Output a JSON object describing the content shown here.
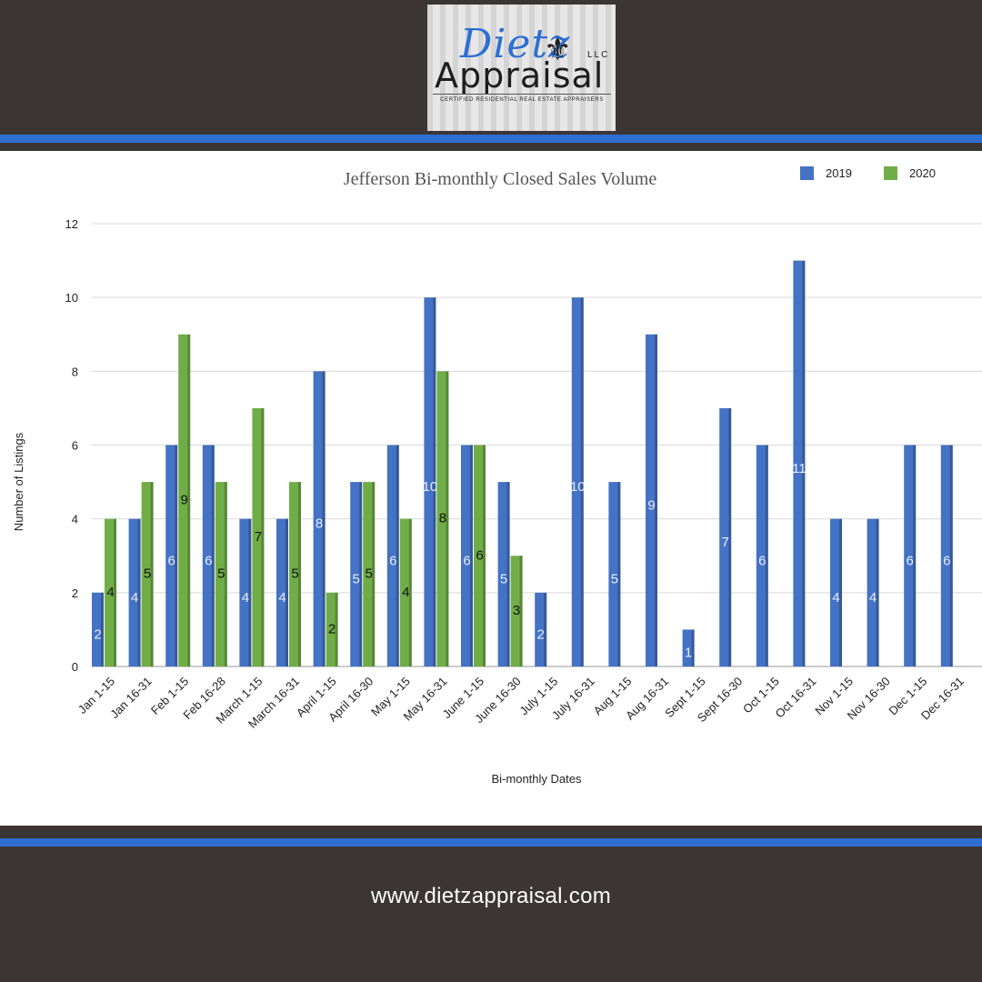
{
  "brand": {
    "logo_script": "Dietz",
    "logo_word": "Appraisal",
    "logo_llc": "LLC",
    "logo_tagline": "CERTIFIED RESIDENTIAL REAL ESTATE APPRAISERS"
  },
  "footer": {
    "url": "www.dietzappraisal.com"
  },
  "colors": {
    "background": "#3b3634",
    "stripe": "#2f6fd2",
    "series_2019": "#4472c4",
    "series_2020": "#70ad47"
  },
  "chart_data": {
    "type": "bar",
    "title": "Jefferson Bi-monthly Closed Sales Volume",
    "xlabel": "Bi-monthly Dates",
    "ylabel": "Number of Listings",
    "ylim": [
      0,
      12
    ],
    "yticks": [
      0,
      2,
      4,
      6,
      8,
      10,
      12
    ],
    "grid": true,
    "legend_position": "top-right",
    "categories": [
      "Jan 1-15",
      "Jan 16-31",
      "Feb 1-15",
      "Feb 16-28",
      "March 1-15",
      "March 16-31",
      "April 1-15",
      "April 16-30",
      "May 1-15",
      "May 16-31",
      "June 1-15",
      "June 16-30",
      "July 1-15",
      "July 16-31",
      "Aug 1-15",
      "Aug 16-31",
      "Sept 1-15",
      "Sept 16-30",
      "Oct 1-15",
      "Oct 16-31",
      "Nov 1-15",
      "Nov 16-30",
      "Dec 1-15",
      "Dec 16-31"
    ],
    "series": [
      {
        "name": "2019",
        "values": [
          2,
          4,
          6,
          6,
          4,
          4,
          8,
          5,
          6,
          10,
          6,
          5,
          2,
          10,
          5,
          9,
          1,
          7,
          6,
          11,
          4,
          4,
          6,
          6
        ]
      },
      {
        "name": "2020",
        "values": [
          4,
          5,
          9,
          5,
          7,
          5,
          2,
          5,
          4,
          8,
          6,
          3,
          null,
          null,
          null,
          null,
          null,
          null,
          null,
          null,
          null,
          null,
          null,
          null
        ]
      }
    ]
  }
}
